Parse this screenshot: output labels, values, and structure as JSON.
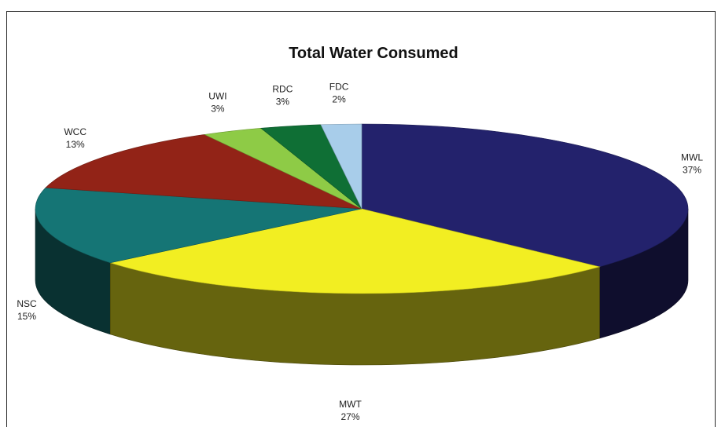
{
  "chart_data": {
    "type": "pie",
    "title": "Total Water Consumed",
    "style": "3d",
    "slices": [
      {
        "label": "MWL",
        "value": 37,
        "value_label": "37%",
        "color": "#23226c"
      },
      {
        "label": "MWT",
        "value": 27,
        "value_label": "27%",
        "color": "#f2ee22"
      },
      {
        "label": "NSC",
        "value": 15,
        "value_label": "15%",
        "color": "#157575"
      },
      {
        "label": "WCC",
        "value": 13,
        "value_label": "13%",
        "color": "#922317"
      },
      {
        "label": "UWI",
        "value": 3,
        "value_label": "3%",
        "color": "#8ecb46"
      },
      {
        "label": "RDC",
        "value": 3,
        "value_label": "3%",
        "color": "#0f6f35"
      },
      {
        "label": "FDC",
        "value": 2,
        "value_label": "2%",
        "color": "#a8cdea"
      }
    ]
  }
}
